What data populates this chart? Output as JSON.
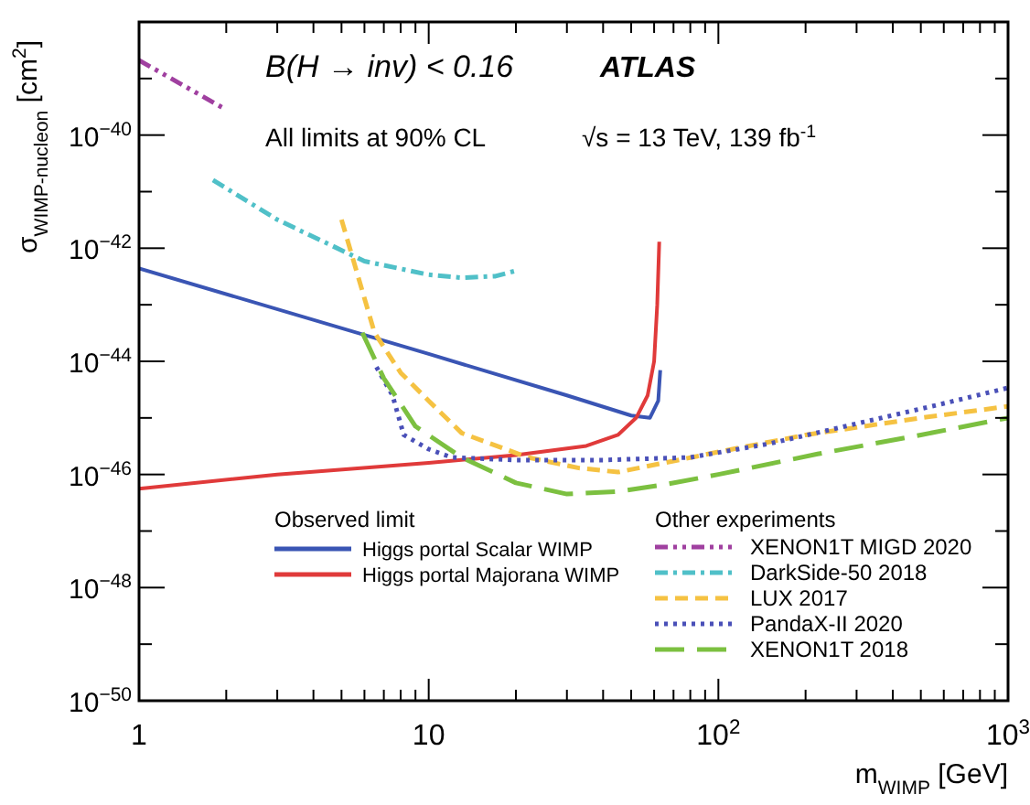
{
  "chart_data": {
    "type": "line",
    "xlabel": "m$_{WIMP}$ [GeV]",
    "ylabel": "σ$_{WIMP-nucleon}$ [cm$^{2}$]",
    "legend_title": "Observed limit",
    "annotations": [
      "B(H → inv) < 0.16",
      "ATLAS",
      "All limits at 90% CL",
      "√s = 13 TeV, 139 fb$^{-1}$",
      "Other experiments"
    ],
    "log": "xy",
    "grid": false,
    "legend": "bottom",
    "xlim": [
      1,
      1000
    ],
    "ylim": [
      1e-50,
      1e-38
    ],
    "xticks": [
      {
        "value": 1,
        "label": "1"
      },
      {
        "value": 2,
        "label": null
      },
      {
        "value": 3,
        "label": null
      },
      {
        "value": 4,
        "label": null
      },
      {
        "value": 5,
        "label": null
      },
      {
        "value": 6,
        "label": null
      },
      {
        "value": 7,
        "label": null
      },
      {
        "value": 8,
        "label": null
      },
      {
        "value": 9,
        "label": null
      },
      {
        "value": 10,
        "label": "10"
      },
      {
        "value": 20,
        "label": null
      },
      {
        "value": 30,
        "label": null
      },
      {
        "value": 40,
        "label": null
      },
      {
        "value": 50,
        "label": null
      },
      {
        "value": 60,
        "label": null
      },
      {
        "value": 70,
        "label": null
      },
      {
        "value": 80,
        "label": null
      },
      {
        "value": 90,
        "label": null
      },
      {
        "value": 100,
        "label": "10$^{2}$"
      },
      {
        "value": 200,
        "label": null
      },
      {
        "value": 300,
        "label": null
      },
      {
        "value": 400,
        "label": null
      },
      {
        "value": 500,
        "label": null
      },
      {
        "value": 600,
        "label": null
      },
      {
        "value": 700,
        "label": null
      },
      {
        "value": 800,
        "label": null
      },
      {
        "value": 900,
        "label": null
      },
      {
        "value": 1000,
        "label": "10$^{3}$"
      }
    ],
    "yticks": [
      {
        "value": 1e-50,
        "label": "10$^{−50}$"
      },
      {
        "value": 1e-49,
        "label": null
      },
      {
        "value": 1e-48,
        "label": "10$^{−48}$"
      },
      {
        "value": 1e-47,
        "label": null
      },
      {
        "value": 1e-46,
        "label": "10$^{−46}$"
      },
      {
        "value": 1e-45,
        "label": null
      },
      {
        "value": 1e-44,
        "label": "10$^{−44}$"
      },
      {
        "value": 1e-43,
        "label": null
      },
      {
        "value": 1e-42,
        "label": "10$^{−42}$"
      },
      {
        "value": 1e-41,
        "label": null
      },
      {
        "value": 1e-40,
        "label": "10$^{−40}$"
      },
      {
        "value": 1e-39,
        "label": null
      },
      {
        "value": 1e-38,
        "label": null
      }
    ],
    "series": [
      {
        "name": "Higgs portal Scalar WIMP",
        "color": "#3a55b4",
        "line_style": "solid",
        "x": [
          1,
          10,
          30,
          50,
          58,
          62,
          63
        ],
        "values": [
          4.4e-43,
          1.35e-44,
          2.5e-45,
          1.1e-45,
          1e-45,
          2e-45,
          7e-45
        ]
      },
      {
        "name": "Higgs portal Majorana WIMP",
        "color": "#e03a3a",
        "line_style": "solid",
        "x": [
          1,
          3,
          10,
          20,
          35,
          45,
          52,
          57,
          60,
          61.5,
          62.5
        ],
        "values": [
          5.6e-47,
          1e-46,
          1.6e-46,
          2.2e-46,
          3.2e-46,
          5e-46,
          1e-45,
          2.5e-45,
          1e-44,
          1e-43,
          1.3e-42
        ]
      },
      {
        "name": "XENON1T MIGD 2020",
        "color": "#a040a0",
        "line_style": "dashdotdot",
        "x": [
          1,
          2
        ],
        "values": [
          2.1e-39,
          2.8e-40
        ]
      },
      {
        "name": "DarkSide-50 2018",
        "color": "#50c0c8",
        "line_style": "dashdot",
        "x": [
          1.8,
          3,
          6,
          10,
          13,
          17,
          20
        ],
        "values": [
          1.6e-41,
          3.2e-42,
          5.9e-43,
          3.4e-43,
          3e-43,
          3.2e-43,
          4e-43
        ]
      },
      {
        "name": "LUX 2017",
        "color": "#f5c242",
        "line_style": "dashed",
        "x": [
          5,
          6.5,
          8,
          10,
          13,
          22,
          33,
          45,
          100,
          200,
          500,
          1000
        ],
        "values": [
          3.2e-42,
          3.2e-44,
          6.3e-45,
          2e-45,
          5.4e-46,
          2e-46,
          1.3e-46,
          1.1e-46,
          2.5e-46,
          5e-46,
          1e-45,
          1.6e-45
        ]
      },
      {
        "name": "PandaX-II 2020",
        "color": "#4a50b8",
        "line_style": "dotted",
        "x": [
          6.6,
          7.5,
          8.2,
          10,
          12,
          20,
          40,
          80,
          150,
          300,
          600,
          1000
        ],
        "values": [
          7.9e-45,
          2.5e-45,
          5e-46,
          2.8e-46,
          2e-46,
          1.8e-46,
          1.8e-46,
          2e-46,
          3.5e-46,
          7.9e-46,
          1.8e-45,
          3.4e-45
        ]
      },
      {
        "name": "XENON1T 2018",
        "color": "#7cc040",
        "line_style": "longdash",
        "x": [
          5.9,
          7,
          9,
          13,
          20,
          30,
          45,
          65,
          100,
          220,
          500,
          1000
        ],
        "values": [
          3.2e-44,
          5e-45,
          7.1e-46,
          2e-46,
          7.1e-47,
          4.5e-47,
          5e-47,
          6.6e-47,
          1e-46,
          2.3e-46,
          5e-46,
          1e-45
        ]
      }
    ]
  }
}
